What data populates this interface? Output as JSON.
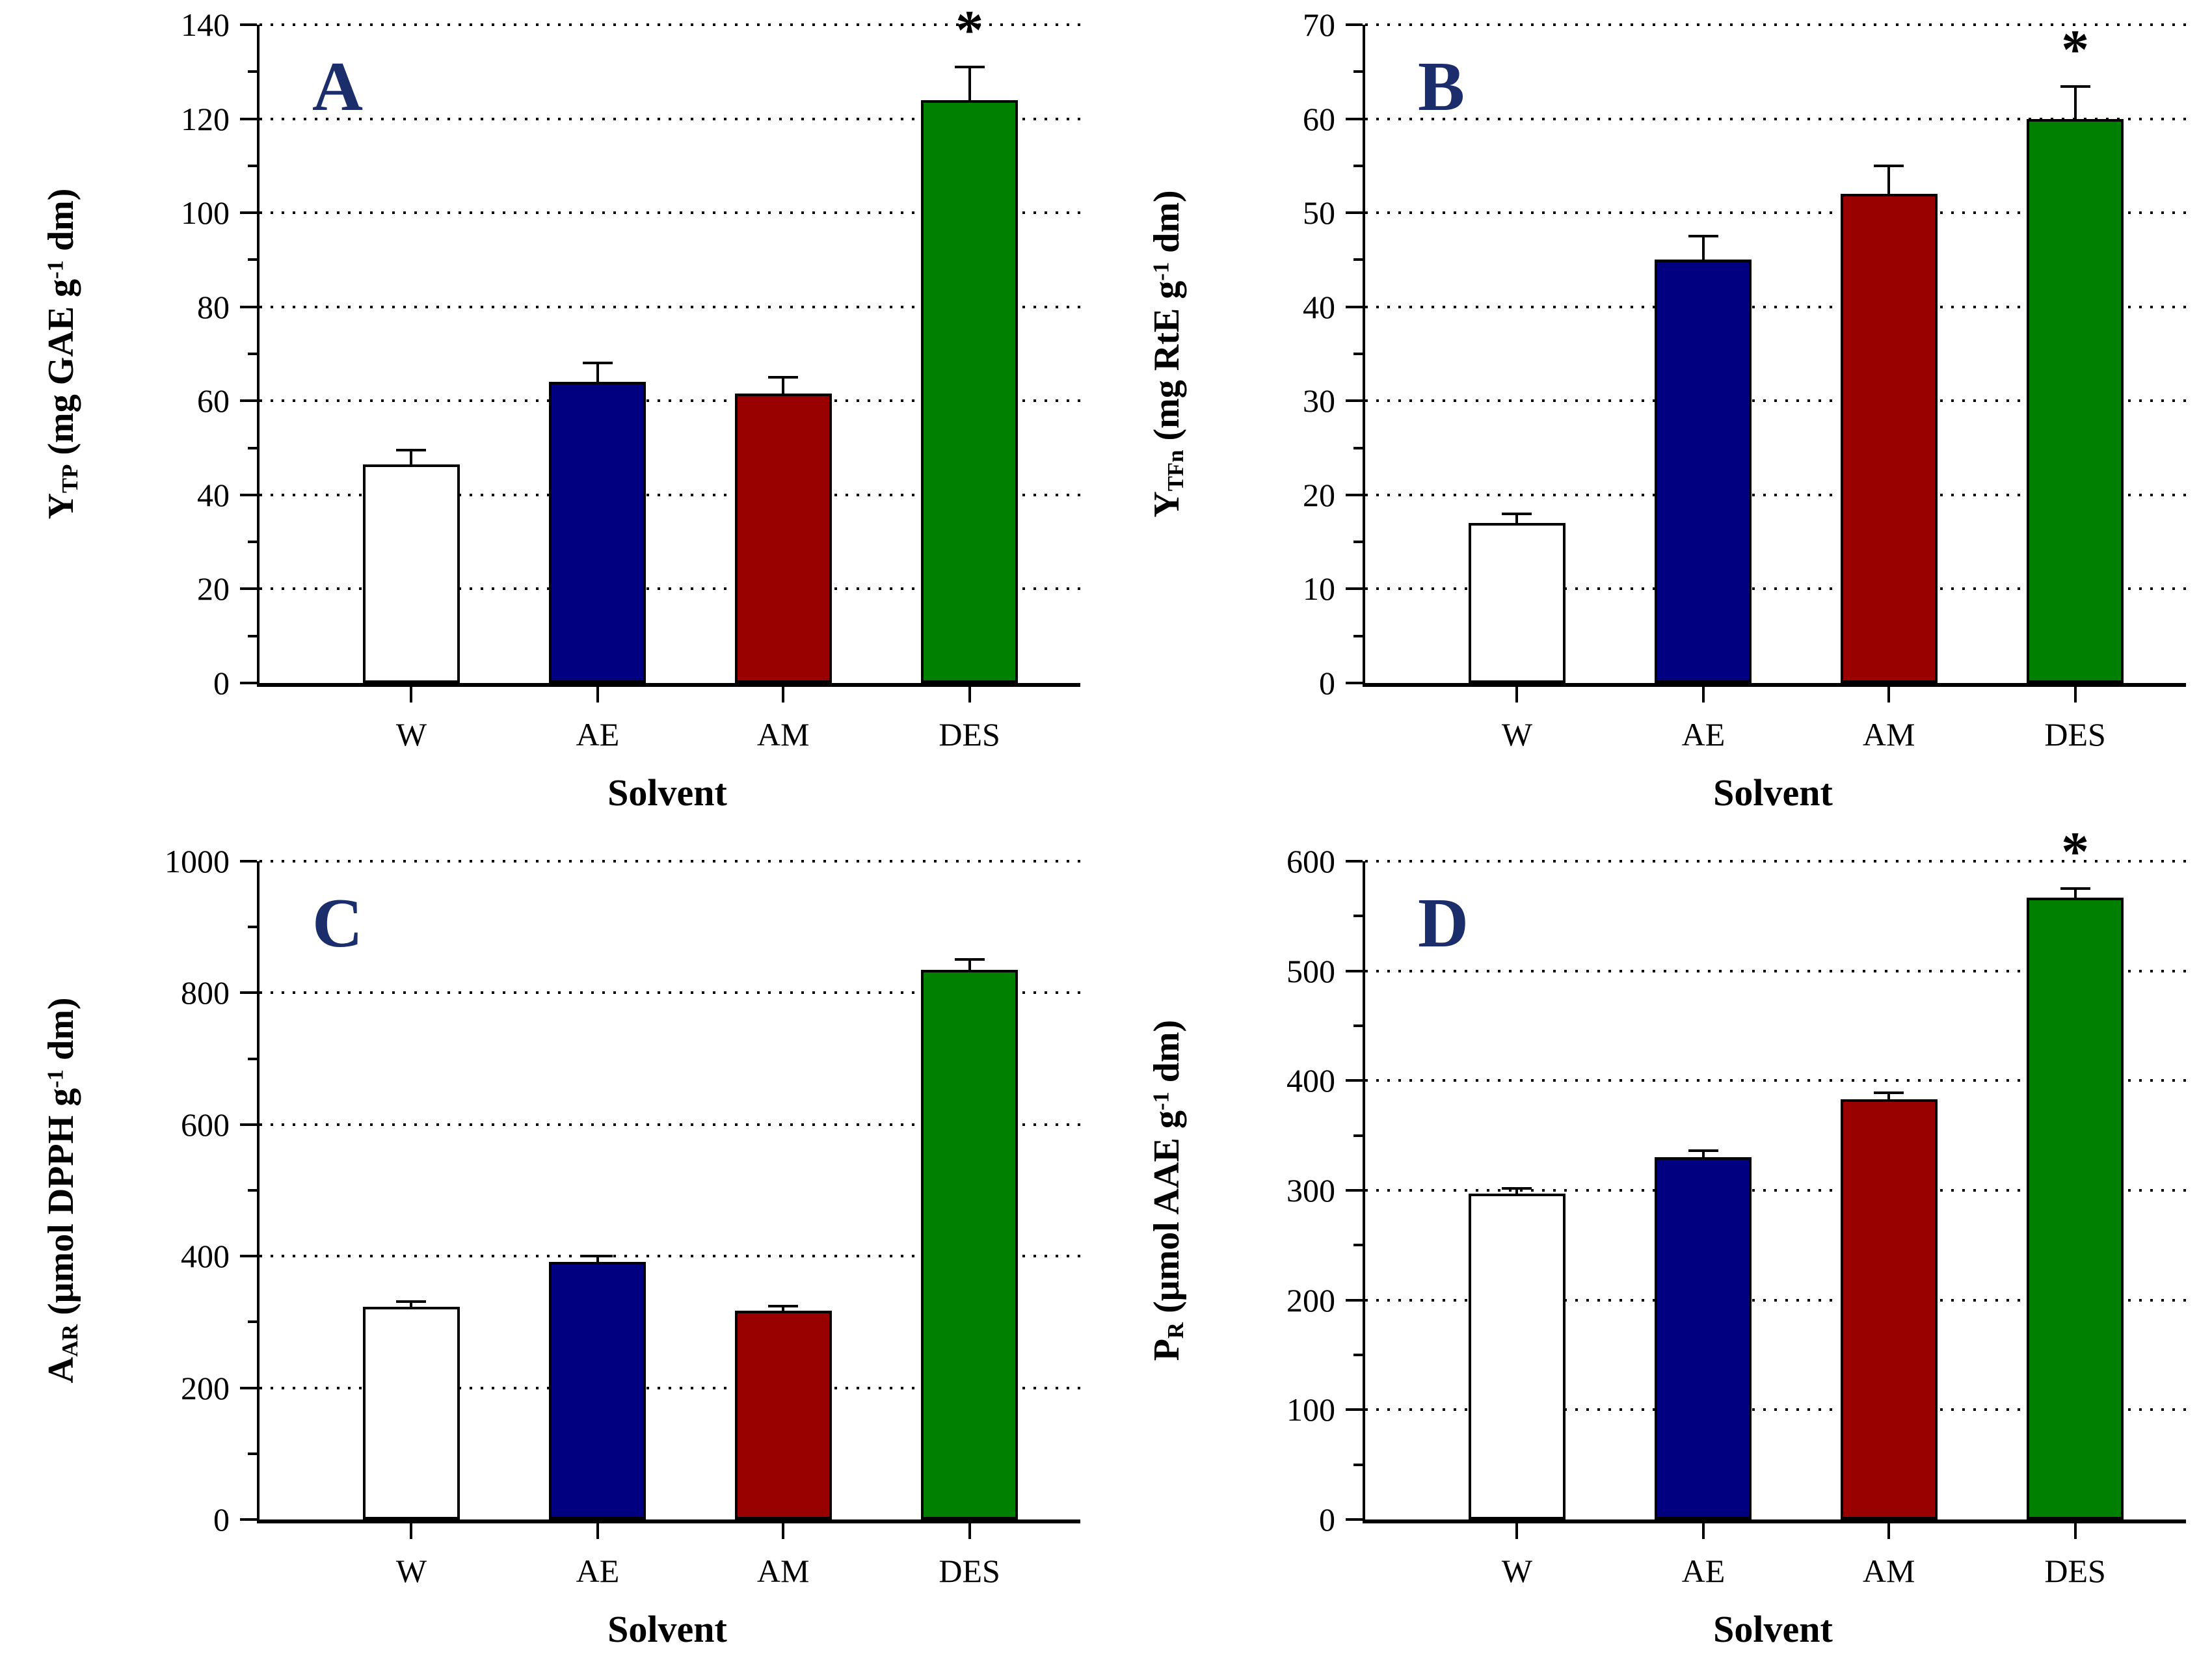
{
  "figure": {
    "xlabel": "Solvent",
    "categories": [
      "W",
      "AE",
      "AM",
      "DES"
    ],
    "bar_colors": [
      "#ffffff",
      "#000080",
      "#990000",
      "#008000"
    ],
    "bar_border_color": "#000000",
    "panel_letter_color": "#1b2d6b",
    "significance_marker": "*",
    "grid": "dotted horizontal at major ticks",
    "legend": "none"
  },
  "chart_data": [
    {
      "type": "bar",
      "panel": "A",
      "title": "",
      "ylabel_symbol": "Y",
      "ylabel_sub": "TP",
      "ylabel_unit": " (mg GAE g",
      "ylabel_sup": "-1",
      "ylabel_unit_end": " dm)",
      "xlabel": "Solvent",
      "categories": [
        "W",
        "AE",
        "AM",
        "DES"
      ],
      "values": [
        46.5,
        64,
        61.5,
        124
      ],
      "errors": [
        3,
        4,
        3.5,
        7
      ],
      "significant": [
        false,
        false,
        false,
        true
      ],
      "ylim": [
        0,
        140
      ],
      "ytick_step": 20
    },
    {
      "type": "bar",
      "panel": "B",
      "title": "",
      "ylabel_symbol": "Y",
      "ylabel_sub": "TFn",
      "ylabel_unit": " (mg RtE g",
      "ylabel_sup": "-1",
      "ylabel_unit_end": " dm)",
      "xlabel": "Solvent",
      "categories": [
        "W",
        "AE",
        "AM",
        "DES"
      ],
      "values": [
        17,
        45,
        52,
        60
      ],
      "errors": [
        1,
        2.5,
        3,
        3.4
      ],
      "significant": [
        false,
        false,
        false,
        true
      ],
      "ylim": [
        0,
        70
      ],
      "ytick_step": 10
    },
    {
      "type": "bar",
      "panel": "C",
      "title": "",
      "ylabel_symbol": "A",
      "ylabel_sub": "AR",
      "ylabel_unit": " (μmol DPPH g",
      "ylabel_sup": "-1",
      "ylabel_unit_end": " dm)",
      "xlabel": "Solvent",
      "categories": [
        "W",
        "AE",
        "AM",
        "DES"
      ],
      "values": [
        323,
        391,
        317,
        835
      ],
      "errors": [
        8,
        9,
        7,
        16
      ],
      "significant": [
        false,
        false,
        false,
        false
      ],
      "ylim": [
        0,
        1000
      ],
      "ytick_step": 200
    },
    {
      "type": "bar",
      "panel": "D",
      "title": "",
      "ylabel_symbol": "P",
      "ylabel_sub": "R",
      "ylabel_unit": " (μmol AAE g",
      "ylabel_sup": "-1",
      "ylabel_unit_end": " dm)",
      "xlabel": "Solvent",
      "categories": [
        "W",
        "AE",
        "AM",
        "DES"
      ],
      "values": [
        297,
        330,
        383,
        567
      ],
      "errors": [
        5,
        6,
        6,
        8
      ],
      "significant": [
        false,
        false,
        false,
        true
      ],
      "ylim": [
        0,
        600
      ],
      "ytick_step": 100
    }
  ]
}
